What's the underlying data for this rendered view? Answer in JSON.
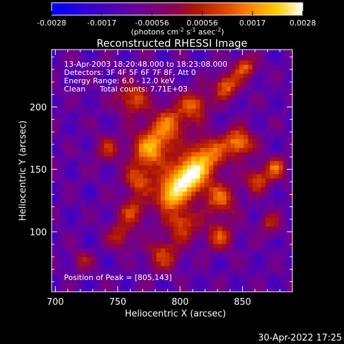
{
  "colorbar": {
    "ticks": [
      "-0.0028",
      "-0.0017",
      "-0.00056",
      "0.00056",
      "0.0017",
      "0.0028"
    ],
    "unit_main": "(photons cm",
    "unit_exp1": "-2",
    "unit_s": " s",
    "unit_exp2": "-1",
    "unit_asec": " asec",
    "unit_exp3": "-2",
    "unit_close": ")",
    "colors": [
      "#0000ff",
      "#3d00c8",
      "#6c0097",
      "#8a0058",
      "#b01800",
      "#e14b00",
      "#ff8c00",
      "#ffd000",
      "#ffffff"
    ]
  },
  "chart_data": {
    "type": "heatmap",
    "title": "Reconstructed RHESSI Image",
    "xlabel": "Heliocentric X (arcsec)",
    "ylabel": "Heliocentric Y (arcsec)",
    "xlim": [
      697,
      890
    ],
    "ylim": [
      52,
      246
    ],
    "xticks": [
      700,
      750,
      800,
      850
    ],
    "yticks": [
      100,
      150,
      200
    ],
    "peak": [
      805,
      143
    ],
    "annotations": {
      "time": "13-Apr-2003 18:20:48.000 to 18:23:08.000",
      "detectors": "Detectors: 3F 4F 5F 6F 7F 8F, Att 0",
      "energy": "Energy Range: 6.0 - 12.0 keV",
      "clean": "Clean",
      "counts": "Total counts: 7.71E+03",
      "peak_label": "Position of Peak = [805,143]"
    },
    "hotspots": [
      {
        "x": 805,
        "y": 143,
        "amp": 1.0,
        "r": 10
      },
      {
        "x": 790,
        "y": 128,
        "amp": 0.75,
        "r": 9
      },
      {
        "x": 775,
        "y": 165,
        "amp": 0.72,
        "r": 11
      },
      {
        "x": 820,
        "y": 160,
        "amp": 0.65,
        "r": 10
      },
      {
        "x": 845,
        "y": 170,
        "amp": 0.68,
        "r": 8
      },
      {
        "x": 790,
        "y": 185,
        "amp": 0.55,
        "r": 10
      },
      {
        "x": 810,
        "y": 200,
        "amp": 0.55,
        "r": 8
      },
      {
        "x": 835,
        "y": 215,
        "amp": 0.6,
        "r": 7
      },
      {
        "x": 850,
        "y": 230,
        "amp": 0.55,
        "r": 6
      },
      {
        "x": 760,
        "y": 205,
        "amp": 0.5,
        "r": 9
      },
      {
        "x": 765,
        "y": 140,
        "amp": 0.5,
        "r": 8
      },
      {
        "x": 830,
        "y": 125,
        "amp": 0.55,
        "r": 9
      },
      {
        "x": 860,
        "y": 140,
        "amp": 0.5,
        "r": 7
      },
      {
        "x": 875,
        "y": 150,
        "amp": 0.55,
        "r": 6
      },
      {
        "x": 760,
        "y": 115,
        "amp": 0.45,
        "r": 8
      },
      {
        "x": 800,
        "y": 105,
        "amp": 0.5,
        "r": 9
      },
      {
        "x": 830,
        "y": 95,
        "amp": 0.45,
        "r": 8
      },
      {
        "x": 785,
        "y": 80,
        "amp": 0.45,
        "r": 9
      },
      {
        "x": 750,
        "y": 95,
        "amp": 0.4,
        "r": 7
      },
      {
        "x": 740,
        "y": 165,
        "amp": 0.35,
        "r": 7
      },
      {
        "x": 870,
        "y": 105,
        "amp": 0.35,
        "r": 6
      },
      {
        "x": 720,
        "y": 75,
        "amp": 0.3,
        "r": 6
      }
    ]
  },
  "footer_timestamp": "30-Apr-2022 17:25"
}
